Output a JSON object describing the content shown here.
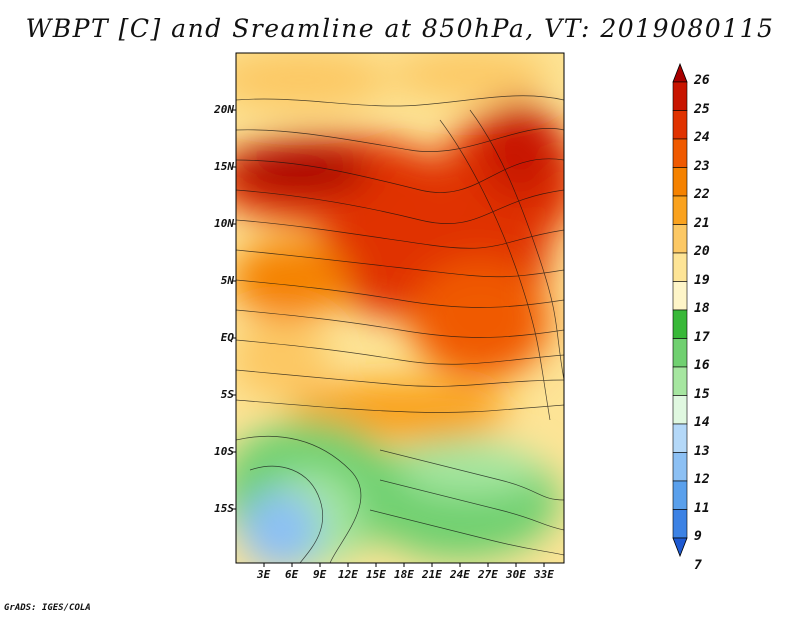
{
  "title": "WBPT [C] and Sreamline at 850hPa, VT: 2019080115",
  "credit": "GrADS: IGES/COLA",
  "map": {
    "lat_labels": [
      "20N",
      "15N",
      "10N",
      "5N",
      "EQ",
      "5S",
      "10S",
      "15S"
    ],
    "lon_labels": [
      "3E",
      "6E",
      "9E",
      "12E",
      "15E",
      "18E",
      "21E",
      "24E",
      "27E",
      "30E",
      "33E"
    ]
  },
  "colorbar": {
    "labels": [
      "26",
      "25",
      "24",
      "23",
      "22",
      "21",
      "20",
      "19",
      "18",
      "17",
      "16",
      "15",
      "14",
      "13",
      "12",
      "11",
      "9",
      "7"
    ],
    "colors": [
      "#a80000",
      "#c81400",
      "#e03200",
      "#f05a00",
      "#f58200",
      "#faa21e",
      "#fcc864",
      "#fde496",
      "#fef5c8",
      "#38b838",
      "#70d070",
      "#a6e6a0",
      "#e0f8e0",
      "#b4d8f8",
      "#8cc0f4",
      "#5aa0ec",
      "#3c82e4",
      "#1e5ad2"
    ]
  }
}
